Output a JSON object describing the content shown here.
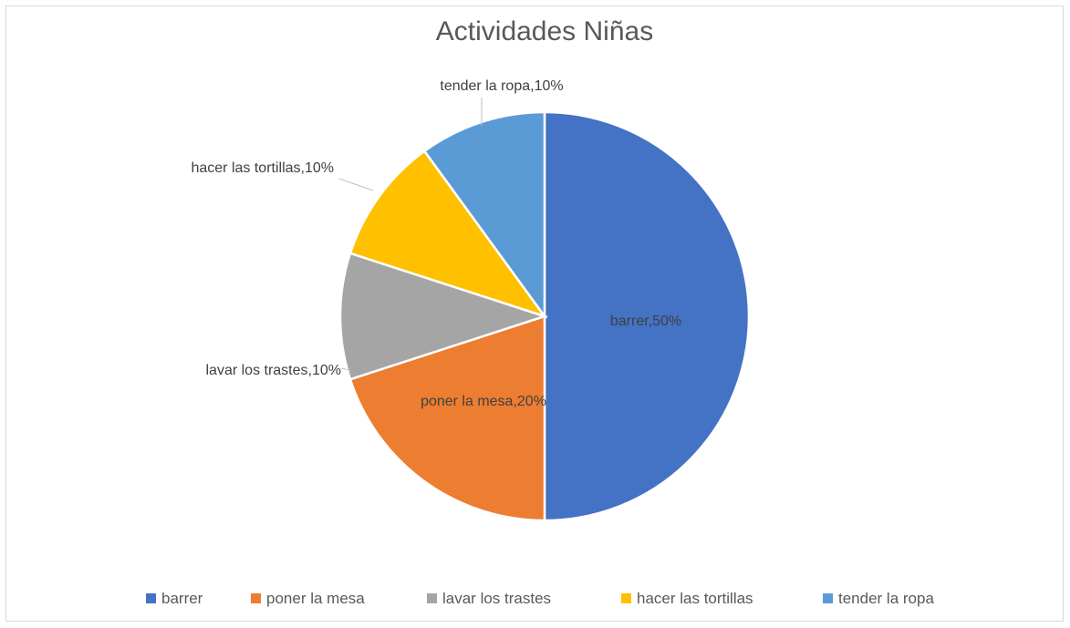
{
  "chart_data": {
    "type": "pie",
    "title": "Actividades Niñas",
    "slices": [
      {
        "name": "barrer",
        "value": 50,
        "label": "barrer,50%",
        "color": "#4472c4"
      },
      {
        "name": "poner la mesa",
        "value": 20,
        "label": "poner la mesa,20%",
        "color": "#ed7d31"
      },
      {
        "name": "lavar los trastes",
        "value": 10,
        "label": "lavar los trastes,10%",
        "color": "#a5a5a5"
      },
      {
        "name": "hacer las tortillas",
        "value": 10,
        "label": "hacer las tortillas,10%",
        "color": "#ffc000"
      },
      {
        "name": "tender la ropa",
        "value": 10,
        "label": "tender la ropa,10%",
        "color": "#5b9bd5"
      }
    ],
    "legend_position": "bottom"
  }
}
